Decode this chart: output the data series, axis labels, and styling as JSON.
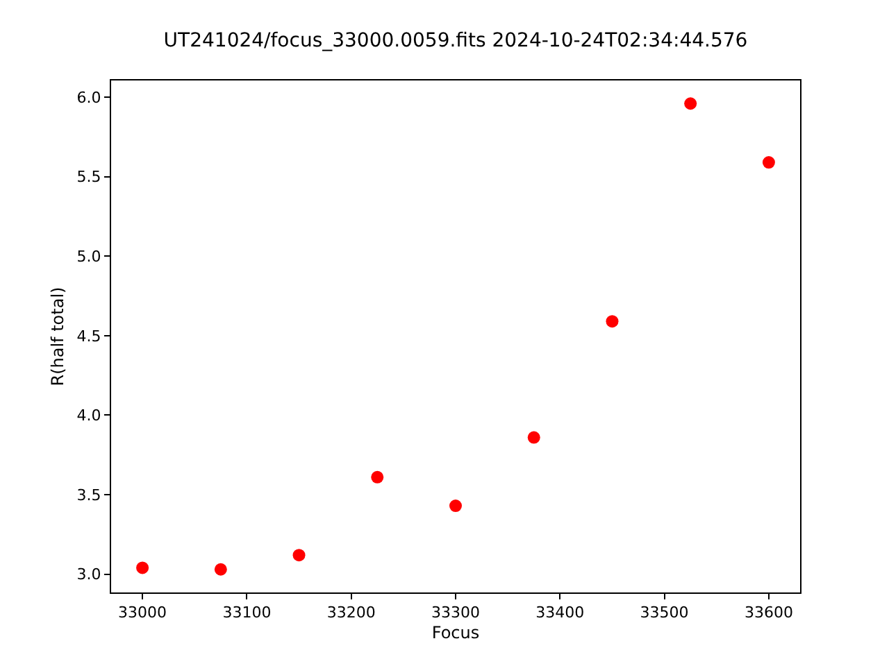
{
  "chart_data": {
    "type": "scatter",
    "title": "UT241024/focus_33000.0059.fits 2024-10-24T02:34:44.576",
    "xlabel": "Focus",
    "ylabel": "R(half total)",
    "x": [
      33000,
      33075,
      33150,
      33225,
      33300,
      33375,
      33450,
      33525,
      33600
    ],
    "series": [
      {
        "color": "#ff0000",
        "values": [
          3.04,
          3.03,
          3.12,
          3.61,
          3.43,
          3.86,
          4.59,
          5.96,
          5.59
        ]
      }
    ],
    "xlim": [
      32970,
      33630
    ],
    "ylim": [
      2.885,
      6.105
    ],
    "xticks": [
      33000,
      33100,
      33200,
      33300,
      33400,
      33500,
      33600
    ],
    "yticks": [
      {
        "value": 3.0,
        "label": "3.0"
      },
      {
        "value": 3.5,
        "label": "3.5"
      },
      {
        "value": 4.0,
        "label": "4.0"
      },
      {
        "value": 4.5,
        "label": "4.5"
      },
      {
        "value": 5.0,
        "label": "5.0"
      },
      {
        "value": 5.5,
        "label": "5.5"
      },
      {
        "value": 6.0,
        "label": "6.0"
      }
    ],
    "marker": "circle"
  }
}
